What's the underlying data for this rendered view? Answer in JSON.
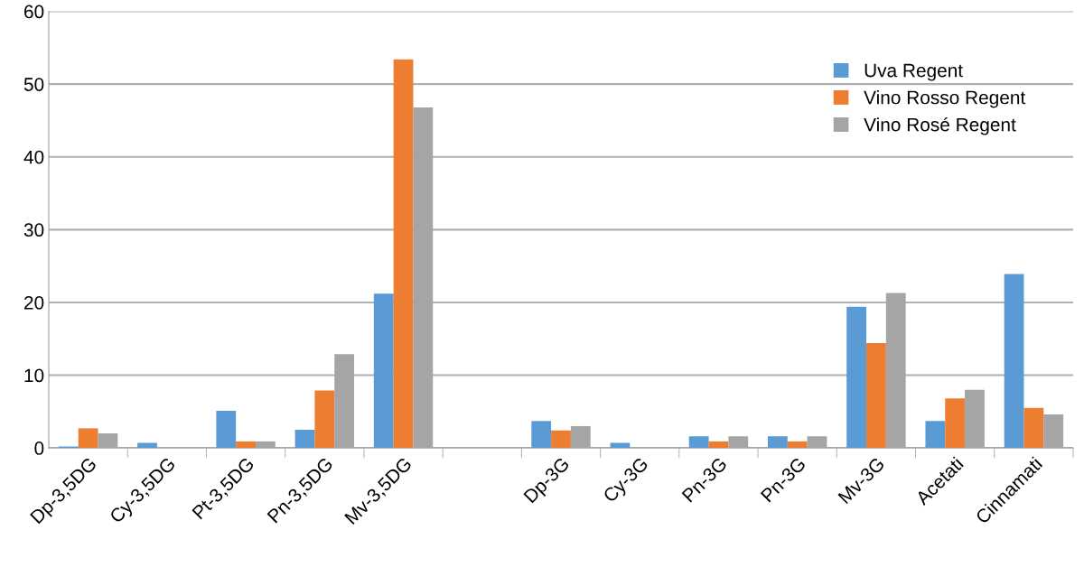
{
  "chart_data": {
    "type": "bar",
    "categories": [
      "Dp-3,5DG",
      "Cy-3,5DG",
      "Pt-3,5DG",
      "Pn-3,5DG",
      "Mv-3,5DG",
      null,
      "Dp-3G",
      "Cy-3G",
      "Pn-3G",
      "Pn-3G",
      "Mv-3G",
      "Acetati",
      "Cinnamati"
    ],
    "series": [
      {
        "name": "Uva Regent",
        "color": "#5b9bd5",
        "values": [
          0.2,
          0.7,
          5.1,
          2.5,
          21.2,
          null,
          3.7,
          0.7,
          1.6,
          1.6,
          19.4,
          3.7,
          23.9
        ]
      },
      {
        "name": "Vino Rosso Regent",
        "color": "#ed7d31",
        "values": [
          2.7,
          null,
          0.9,
          7.9,
          53.4,
          null,
          2.4,
          null,
          0.9,
          0.9,
          14.4,
          6.8,
          5.5
        ]
      },
      {
        "name": "Vino Rosé Regent",
        "color": "#a5a5a5",
        "values": [
          2.0,
          null,
          0.9,
          12.9,
          46.8,
          null,
          3.0,
          null,
          1.6,
          1.6,
          21.3,
          8.0,
          4.6
        ]
      }
    ],
    "ylim": [
      0,
      60
    ],
    "yticks": [
      0,
      10,
      20,
      30,
      40,
      50,
      60
    ],
    "grid": "y",
    "legend": "top right"
  }
}
